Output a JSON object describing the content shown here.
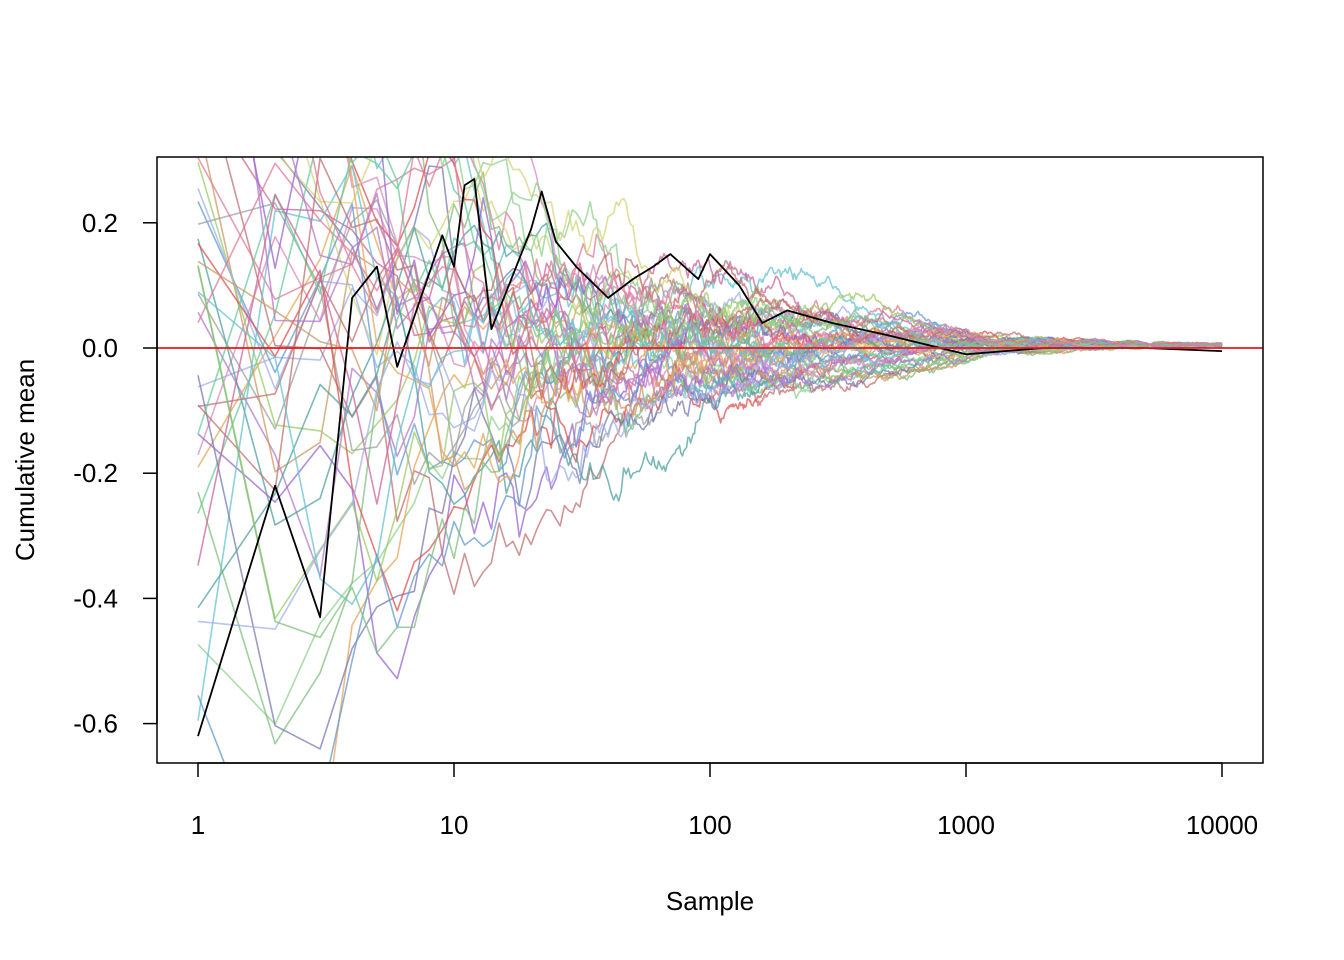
{
  "chart_data": {
    "type": "line",
    "title": "",
    "xlabel": "Sample",
    "ylabel": "Cumulative mean",
    "x_scale": "log",
    "xlim": [
      1,
      10000
    ],
    "ylim": [
      -0.66,
      0.3
    ],
    "x_ticks": [
      {
        "value": 1,
        "label": "1"
      },
      {
        "value": 10,
        "label": "10"
      },
      {
        "value": 100,
        "label": "100"
      },
      {
        "value": 1000,
        "label": "1000"
      },
      {
        "value": 10000,
        "label": "10000"
      }
    ],
    "y_ticks": [
      {
        "value": 0.2,
        "label": "0.2"
      },
      {
        "value": 0.0,
        "label": "0.0"
      },
      {
        "value": -0.2,
        "label": "-0.2"
      },
      {
        "value": -0.4,
        "label": "-0.4"
      },
      {
        "value": -0.6,
        "label": "-0.6"
      }
    ],
    "reference_line": {
      "y": 0.0,
      "color": "#e41a1c"
    },
    "grid": false,
    "legend": "none",
    "series_count": 50,
    "series": [
      {
        "color": "#000000",
        "points": [
          [
            1,
            -0.62
          ],
          [
            2,
            -0.22
          ],
          [
            3,
            -0.43
          ],
          [
            4,
            0.08
          ],
          [
            5,
            0.13
          ],
          [
            6,
            -0.03
          ],
          [
            7,
            0.05
          ],
          [
            9,
            0.18
          ],
          [
            10,
            0.13
          ],
          [
            11,
            0.26
          ],
          [
            12,
            0.27
          ],
          [
            14,
            0.03
          ],
          [
            16,
            0.09
          ],
          [
            20,
            0.19
          ],
          [
            22,
            0.25
          ],
          [
            25,
            0.17
          ],
          [
            30,
            0.13
          ],
          [
            40,
            0.08
          ],
          [
            50,
            0.11
          ],
          [
            60,
            0.13
          ],
          [
            70,
            0.15
          ],
          [
            90,
            0.11
          ],
          [
            100,
            0.15
          ],
          [
            130,
            0.1
          ],
          [
            160,
            0.04
          ],
          [
            200,
            0.06
          ],
          [
            300,
            0.04
          ],
          [
            500,
            0.02
          ],
          [
            1000,
            -0.01
          ],
          [
            2000,
            0.0
          ],
          [
            5000,
            0.0
          ],
          [
            10000,
            -0.005
          ]
        ]
      }
    ],
    "background_series_colors": [
      "#d98cc0",
      "#8fd18f",
      "#9fb0e8",
      "#e6a65c",
      "#c07070",
      "#66c2d1",
      "#b37acc",
      "#7fbf7f",
      "#e07a9a",
      "#7a7ab0",
      "#d4d47a",
      "#a0a0a0",
      "#e05050",
      "#50a0a0",
      "#9966cc",
      "#66cc99",
      "#cc6699",
      "#6699cc",
      "#cc9966",
      "#99cc66"
    ]
  }
}
